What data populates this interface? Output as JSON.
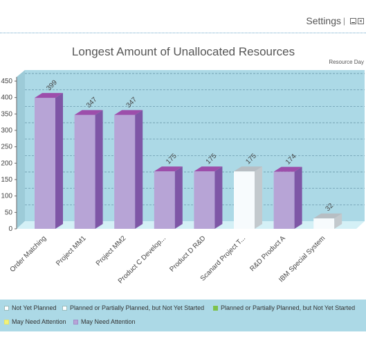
{
  "window": {
    "settings_label": "Settings",
    "separator": "|",
    "close_glyph": "×"
  },
  "chart_data": {
    "type": "bar",
    "title": "Longest Amount of Unallocated Resources",
    "unit_label": "Resource Day",
    "categories": [
      "Order Matching",
      "Project MM1",
      "Project MM2",
      "Product C Develop...",
      "Product D R&D",
      "Scanard Project T...",
      "R&D Product A",
      "IBM Special System"
    ],
    "values": [
      399,
      347,
      347,
      175,
      175,
      175,
      174,
      32
    ],
    "value_labels": [
      "399",
      "347",
      "347",
      "175",
      "175",
      "175",
      "174",
      "32"
    ],
    "status": [
      "purple",
      "purple",
      "purple",
      "purple",
      "purple",
      "white",
      "purple",
      "white"
    ],
    "yticks": [
      "0",
      "50",
      "100",
      "150",
      "200",
      "250",
      "300",
      "350",
      "400",
      "450"
    ],
    "ylim": [
      0,
      450
    ],
    "grid": true,
    "legend_position": "bottom",
    "colors": {
      "plot_bg": "#acd9e6",
      "purple_front": "#b7a4d6",
      "purple_side": "#7e56a6",
      "purple_top": "#9d4eab",
      "white_front": "#f7fbfd",
      "white_side": "#c3c9cd",
      "white_top": "#b7bec3"
    }
  },
  "legend": {
    "items": [
      {
        "label": "Not Yet Planned",
        "color": "#ffffff"
      },
      {
        "label": "Planned or Partially Planned, but Not Yet Started",
        "color": "#ffffff"
      },
      {
        "label": "Planned or Partially Planned, but Not Yet Started",
        "color": "#7dc24b"
      },
      {
        "label": "May Need Attention",
        "color": "#f2f27a"
      },
      {
        "label": "May Need Attention",
        "color": "#b7a4d6"
      }
    ]
  }
}
